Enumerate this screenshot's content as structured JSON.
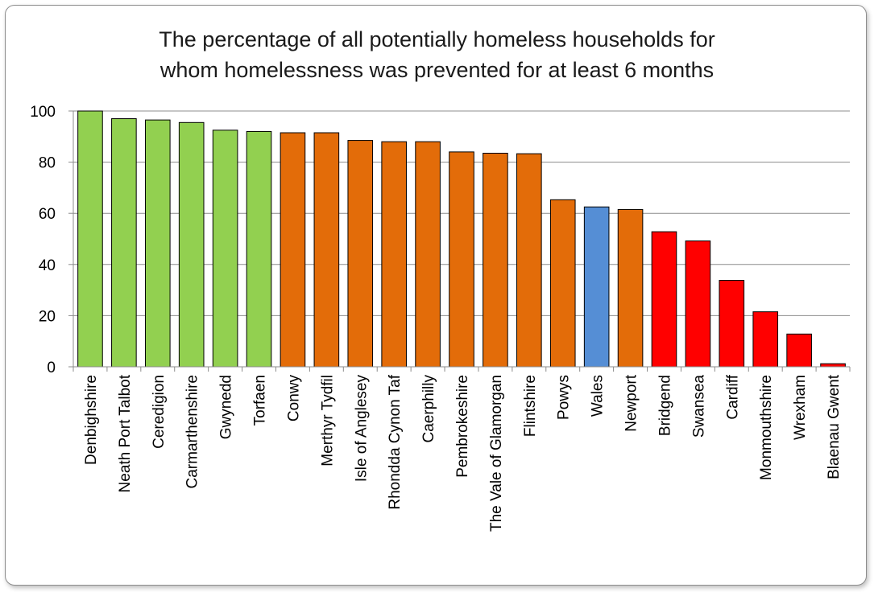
{
  "chart_data": {
    "type": "bar",
    "title_lines": [
      "The percentage of all potentially homeless households for",
      "whom homelessness was prevented for at least 6 months"
    ],
    "xlabel": "",
    "ylabel": "",
    "ylim": [
      0,
      100
    ],
    "yticks": [
      0,
      20,
      40,
      60,
      80,
      100
    ],
    "grid": true,
    "categories": [
      "Denbighshire",
      "Neath Port Talbot",
      "Ceredigion",
      "Carmarthenshire",
      "Gwynedd",
      "Torfaen",
      "Conwy",
      "Merthyr Tydfil",
      "Isle of Anglesey",
      "Rhondda Cynon Taf",
      "Caerphilly",
      "Pembrokeshire",
      "The Vale of Glamorgan",
      "Flintshire",
      "Powys",
      "Wales",
      "Newport",
      "Bridgend",
      "Swansea",
      "Cardiff",
      "Monmouthshire",
      "Wrexham",
      "Blaenau Gwent"
    ],
    "values": [
      100,
      97,
      96.5,
      95.5,
      92.5,
      92,
      91.5,
      91.5,
      88.5,
      88,
      88,
      84,
      83.5,
      83.3,
      65.3,
      62.5,
      61.5,
      52.8,
      49.2,
      33.8,
      21.5,
      12.8,
      1.2
    ],
    "bar_colors": [
      "#92d050",
      "#92d050",
      "#92d050",
      "#92d050",
      "#92d050",
      "#92d050",
      "#e36c09",
      "#e36c09",
      "#e36c09",
      "#e36c09",
      "#e36c09",
      "#e36c09",
      "#e36c09",
      "#e36c09",
      "#e36c09",
      "#558ed5",
      "#e36c09",
      "#ff0000",
      "#ff0000",
      "#ff0000",
      "#ff0000",
      "#ff0000",
      "#ff0000"
    ]
  }
}
